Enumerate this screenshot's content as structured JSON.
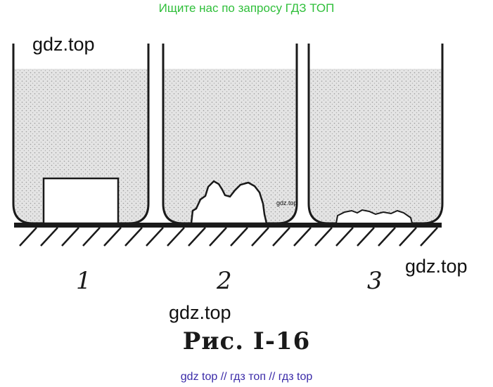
{
  "banner_top": "Ищите нас по запросу ГДЗ ТОП",
  "watermarks": {
    "wm1": "gdz.top",
    "wm2": "gdz.top",
    "wm3": "gdz.top",
    "wm_small": "gdz.top"
  },
  "beakers": [
    {
      "label": "1",
      "content": "cube"
    },
    {
      "label": "2",
      "content": "irregular-lump"
    },
    {
      "label": "3",
      "content": "flat-residue"
    }
  ],
  "caption": "Рис. I-16",
  "banner_bottom": "gdz top  //  гдз топ  //  гдз top",
  "colors": {
    "water_fill": "#dcdcdc",
    "ink": "#1a1a1a",
    "banner_top": "#2fbf3a",
    "banner_bottom": "#3a2aa8"
  }
}
